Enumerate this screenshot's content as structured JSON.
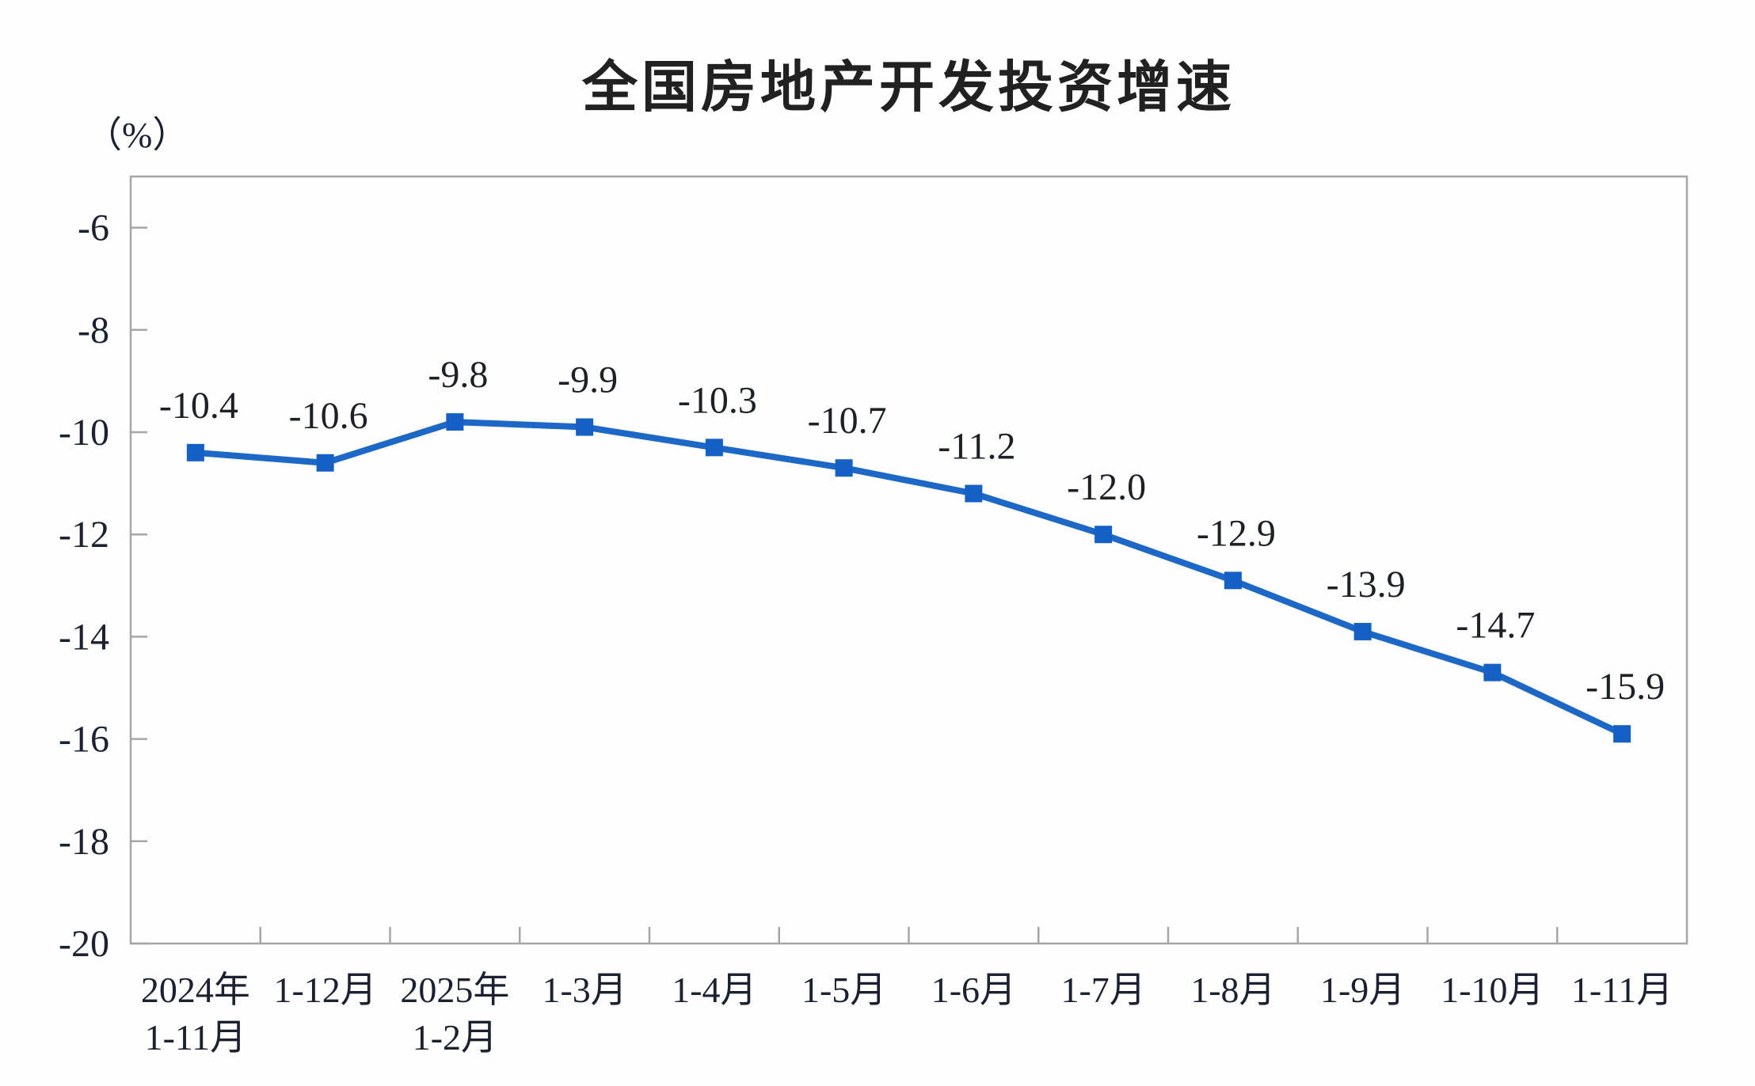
{
  "chart_data": {
    "type": "line",
    "title": "全国房地产开发投资增速",
    "y_unit_label": "（%）",
    "categories": [
      "2024年\n1-11月",
      "1-12月",
      "2025年\n1-2月",
      "1-3月",
      "1-4月",
      "1-5月",
      "1-6月",
      "1-7月",
      "1-8月",
      "1-9月",
      "1-10月",
      "1-11月"
    ],
    "series": [
      {
        "name": "全国房地产开发投资增速",
        "values": [
          -10.4,
          -10.6,
          -9.8,
          -9.9,
          -10.3,
          -10.7,
          -11.2,
          -12.0,
          -12.9,
          -13.9,
          -14.7,
          -15.9
        ],
        "data_labels": [
          "-10.4",
          "-10.6",
          "-9.8",
          "-9.9",
          "-10.3",
          "-10.7",
          "-11.2",
          "-12.0",
          "-12.9",
          "-13.9",
          "-14.7",
          "-15.9"
        ]
      }
    ],
    "y_tick_labels": [
      "-6",
      "-8",
      "-10",
      "-12",
      "-14",
      "-16",
      "-18",
      "-20"
    ],
    "y_tick_values": [
      -6,
      -8,
      -10,
      -12,
      -14,
      -16,
      -18,
      -20
    ],
    "y_axis_top": -5,
    "y_axis_bottom": -20,
    "grid": false,
    "legend": false,
    "marker_shape": "square",
    "colors": {
      "line": "#1d68c6",
      "marker": "#1560c4",
      "axis": "#a6a6a6",
      "tick_label": "#1b2130",
      "data_label": "#1d2126",
      "title": "#212121",
      "background": "#fefefe"
    }
  }
}
